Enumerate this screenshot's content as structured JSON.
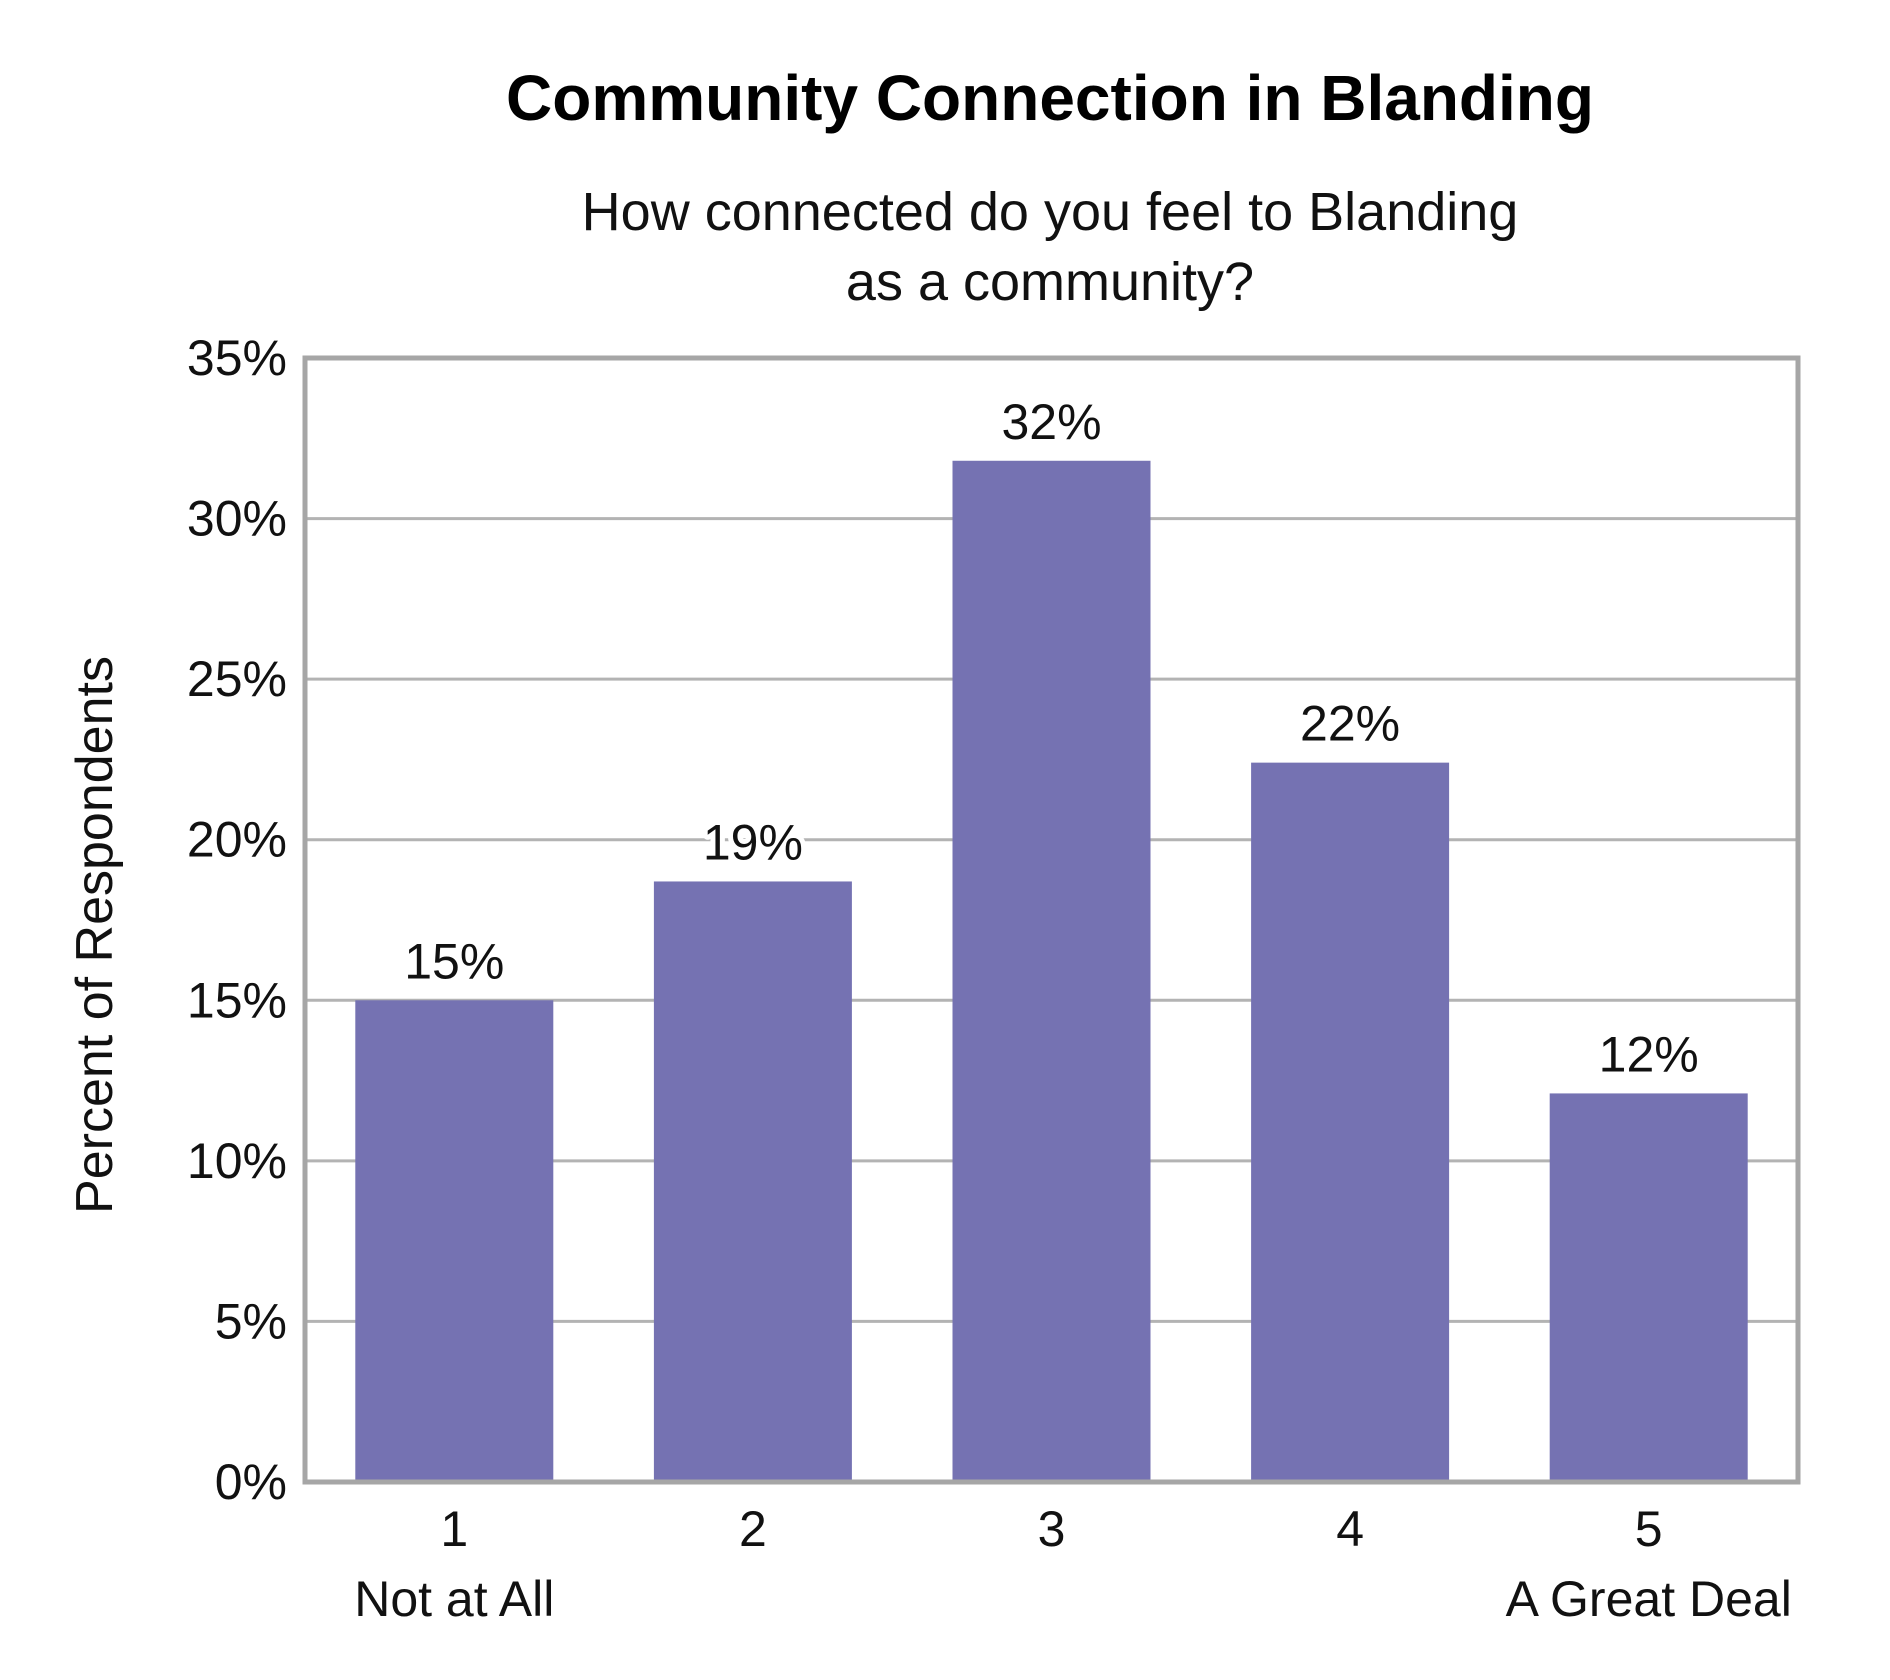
{
  "chart_data": {
    "type": "bar",
    "title": "Community Connection in Blanding",
    "subtitle_lines": [
      "How connected do you feel to Blanding",
      "as a community?"
    ],
    "ylabel": "Percent of Respondents",
    "xlabel": "",
    "categories": [
      "1",
      "2",
      "3",
      "4",
      "5"
    ],
    "category_sublabels": [
      "Not at All",
      "",
      "",
      "",
      "A Great Deal"
    ],
    "values": [
      15,
      19,
      32,
      22,
      12
    ],
    "value_labels": [
      "15%",
      "19%",
      "32%",
      "22%",
      "12%"
    ],
    "plotted_values": [
      15.0,
      18.7,
      31.8,
      22.4,
      12.1
    ],
    "ylim": [
      0,
      35
    ],
    "yticks": [
      0,
      5,
      10,
      15,
      20,
      25,
      30,
      35
    ],
    "ytick_labels": [
      "0%",
      "5%",
      "10%",
      "15%",
      "20%",
      "25%",
      "30%",
      "35%"
    ],
    "grid": true,
    "legend": "none",
    "colors": {
      "bar": "#7572b2",
      "grid": "#b3b3b3",
      "frame": "#a6a6a6"
    }
  }
}
